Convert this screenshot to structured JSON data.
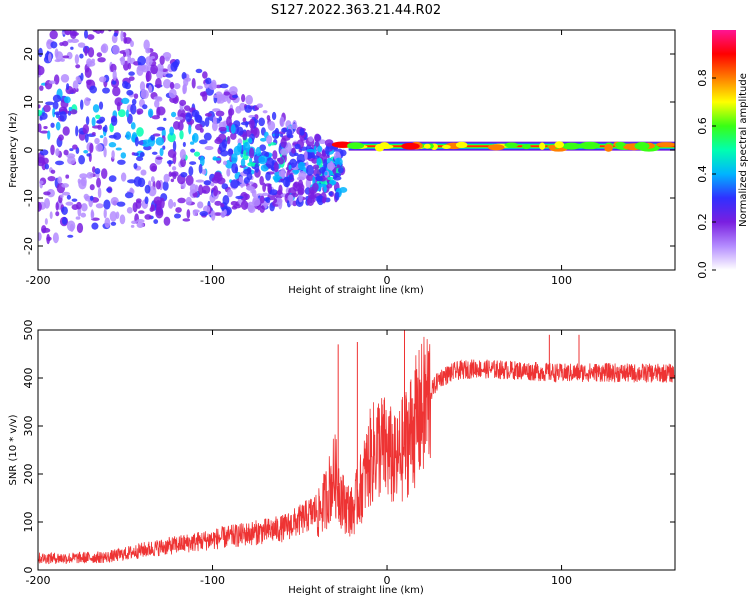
{
  "title": "S127.2022.363.21.44.R02",
  "chart_data": [
    {
      "type": "heatmap",
      "name": "spectrogram",
      "xlabel": "Height of straight line (km)",
      "ylabel": "Frequency (Hz)",
      "xlim": [
        -200,
        165
      ],
      "ylim": [
        -25,
        25
      ],
      "xticks": [
        -200,
        -100,
        0,
        100
      ],
      "yticks": [
        -20,
        -10,
        0,
        10,
        20
      ],
      "colorbar": {
        "label": "Normalized spectral amplitude",
        "range": [
          0,
          1
        ],
        "ticks": [
          "0.0",
          "0.2",
          "0.4",
          "0.6",
          "0.8"
        ],
        "tick_values": [
          0.0,
          0.2,
          0.4,
          0.6,
          0.8
        ],
        "colors": [
          "#ffffff",
          "#b48cff",
          "#7a1fe0",
          "#3030ff",
          "#00b4ff",
          "#00ffb0",
          "#39ff14",
          "#ffff00",
          "#ff7f00",
          "#ff0000",
          "#ff1493"
        ]
      },
      "tone": {
        "frequency_hz": 0.8,
        "start_km": -30,
        "end_km": 165,
        "peak_amplitude": 0.9
      },
      "scatter_region": {
        "x_range": [
          -200,
          -25
        ],
        "freq_center_start_hz": 8,
        "freq_center_end_hz": -5
      }
    },
    {
      "type": "line",
      "name": "snr",
      "xlabel": "Height of straight line (km)",
      "ylabel": "SNR (10 * v/v)",
      "xlim": [
        -200,
        165
      ],
      "ylim": [
        0,
        500
      ],
      "xticks": [
        -200,
        -100,
        0,
        100
      ],
      "yticks": [
        0,
        100,
        200,
        300,
        400,
        500
      ],
      "color": "#ee3333",
      "series": [
        {
          "name": "SNR",
          "x": [
            -200,
            -180,
            -160,
            -150,
            -140,
            -120,
            -100,
            -80,
            -60,
            -50,
            -40,
            -35,
            -30,
            -25,
            -20,
            -15,
            -10,
            -5,
            0,
            5,
            10,
            15,
            20,
            25,
            30,
            40,
            50,
            60,
            80,
            100,
            120,
            140,
            165
          ],
          "values": [
            20,
            20,
            22,
            28,
            35,
            45,
            55,
            65,
            75,
            90,
            110,
            150,
            200,
            140,
            120,
            170,
            230,
            260,
            250,
            220,
            260,
            300,
            330,
            370,
            400,
            415,
            420,
            418,
            415,
            410,
            412,
            410,
            410
          ]
        }
      ],
      "spikes": [
        {
          "x": -28,
          "value": 470
        },
        {
          "x": -17,
          "value": 475
        },
        {
          "x": 10,
          "value": 500
        },
        {
          "x": 93,
          "value": 490
        },
        {
          "x": 110,
          "value": 490
        }
      ]
    }
  ]
}
